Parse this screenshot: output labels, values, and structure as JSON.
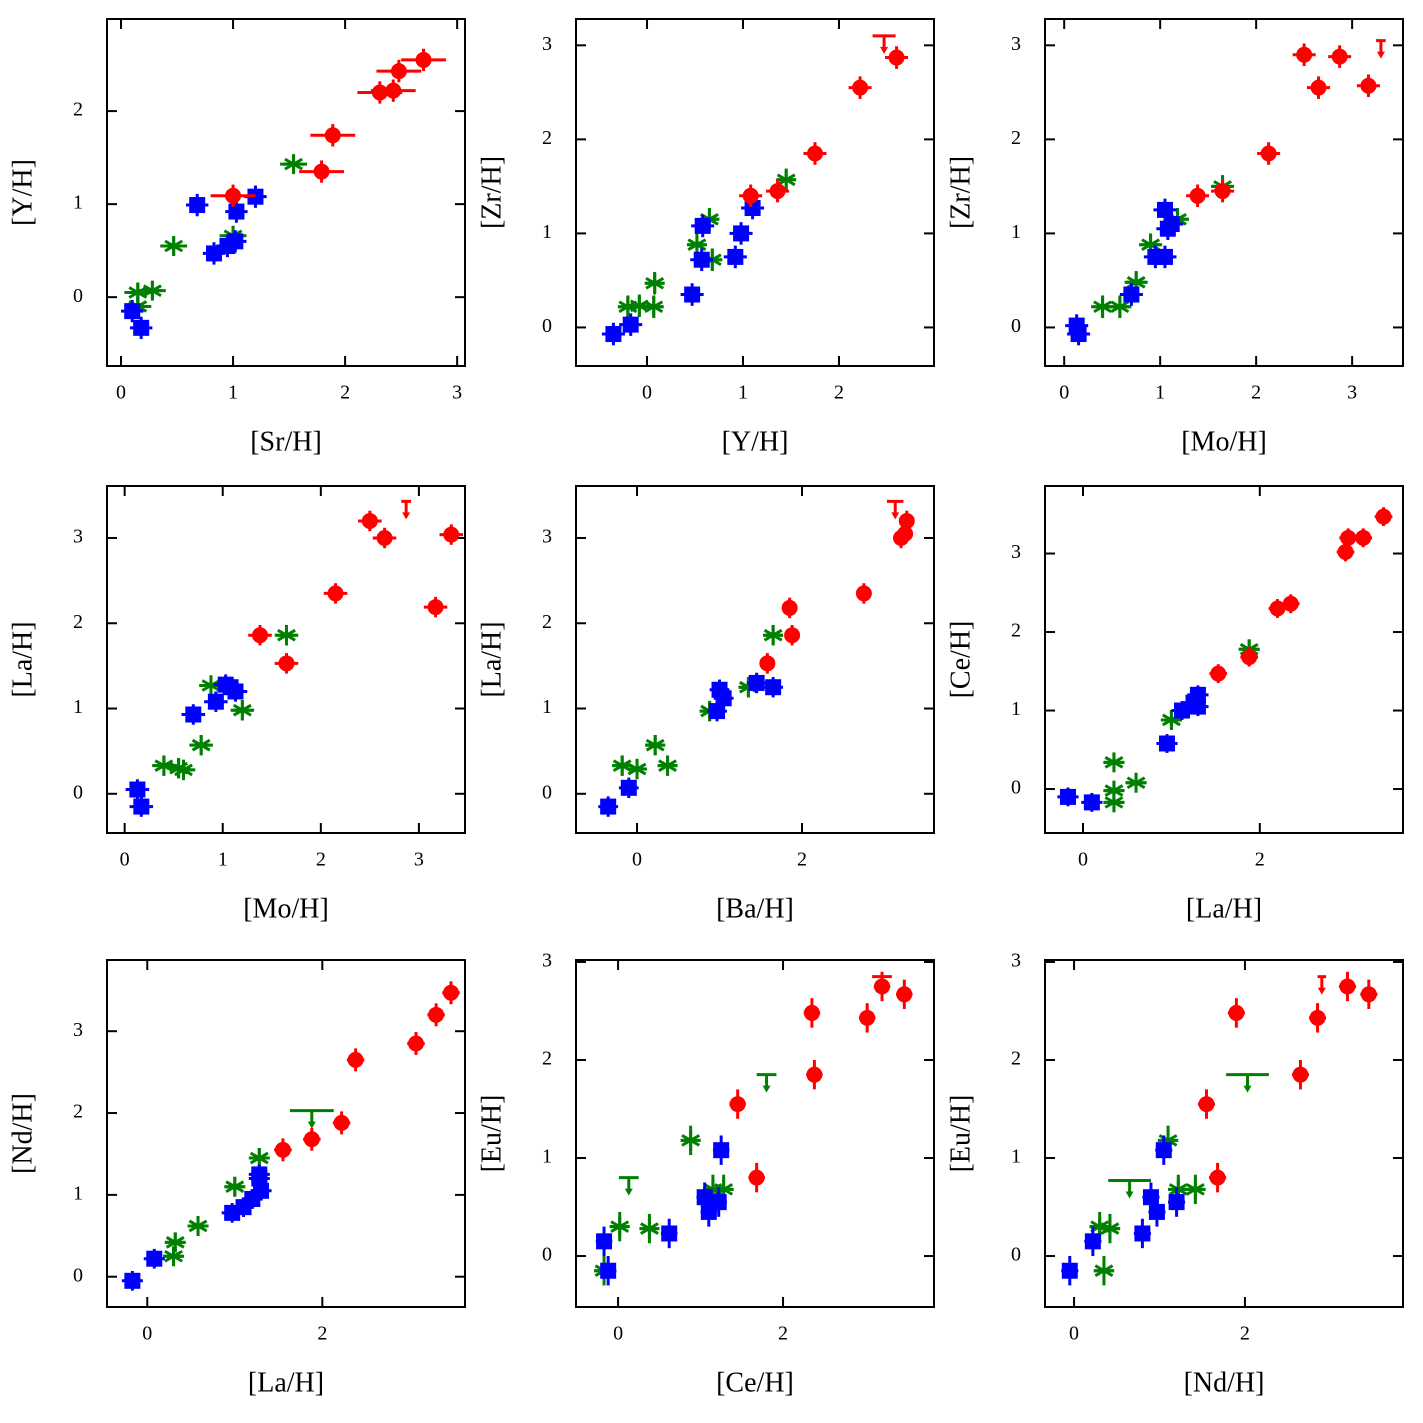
{
  "chart_data": [
    {
      "type": "scatter",
      "xlabel": "[Sr/H]",
      "ylabel": "[Y/H]",
      "xlim": [
        -0.125,
        3.07
      ],
      "ylim": [
        -0.74,
        2.99
      ],
      "xticks": [
        0,
        1,
        2,
        3
      ],
      "yticks": [
        0,
        1,
        2
      ],
      "series": [
        {
          "color": "#008000",
          "marker": "asterisk",
          "xerr": 0.12,
          "yerr": 0.1,
          "x": [
            0.15,
            0.28,
            0.47,
            1.0,
            1.54,
            0.15
          ],
          "y": [
            0.05,
            0.07,
            0.55,
            0.66,
            1.43,
            -0.1
          ]
        },
        {
          "color": "#0000ff",
          "marker": "square",
          "xerr": 0.1,
          "yerr": 0.12,
          "x": [
            0.1,
            0.18,
            0.68,
            0.83,
            0.95,
            1.02,
            1.03,
            1.2
          ],
          "y": [
            -0.15,
            -0.33,
            0.99,
            0.47,
            0.55,
            0.6,
            0.92,
            1.08
          ]
        },
        {
          "color": "#ff0000",
          "marker": "circle",
          "xerr": 0.2,
          "yerr": 0.12,
          "x": [
            1.0,
            1.79,
            1.89,
            2.31,
            2.43,
            2.48,
            2.7
          ],
          "y": [
            1.09,
            1.35,
            1.74,
            2.2,
            2.22,
            2.43,
            2.55
          ]
        }
      ]
    },
    {
      "type": "scatter",
      "xlabel": "[Y/H]",
      "ylabel": "[Zr/H]",
      "xlim": [
        -0.74,
        2.99
      ],
      "ylim": [
        -0.41,
        3.28
      ],
      "xticks": [
        0,
        1,
        2
      ],
      "yticks": [
        0,
        1,
        2,
        3
      ],
      "series": [
        {
          "color": "#008000",
          "marker": "asterisk",
          "xerr": 0.1,
          "yerr": 0.12,
          "x": [
            -0.2,
            -0.08,
            0.07,
            0.08,
            0.52,
            0.65,
            0.68,
            1.45
          ],
          "y": [
            0.22,
            0.23,
            0.22,
            0.47,
            0.88,
            1.15,
            0.72,
            1.57
          ]
        },
        {
          "color": "#0000ff",
          "marker": "square",
          "xerr": 0.12,
          "yerr": 0.12,
          "x": [
            -0.35,
            -0.17,
            0.47,
            0.57,
            0.58,
            0.92,
            0.98,
            1.1
          ],
          "y": [
            -0.07,
            0.03,
            0.35,
            0.72,
            1.08,
            0.75,
            1.0,
            1.27
          ]
        },
        {
          "color": "#ff0000",
          "marker": "circle",
          "xerr": 0.12,
          "yerr": 0.12,
          "x": [
            1.08,
            1.36,
            1.75,
            2.22,
            2.6
          ],
          "y": [
            1.4,
            1.45,
            1.85,
            2.55,
            2.87
          ]
        },
        {
          "color": "#ff0000",
          "marker": "arrow",
          "xerr": 0.12,
          "x": [
            2.47
          ],
          "y": [
            3.1
          ]
        }
      ]
    },
    {
      "type": "scatter",
      "xlabel": "[Mo/H]",
      "ylabel": "[Zr/H]",
      "xlim": [
        -0.2,
        3.53
      ],
      "ylim": [
        -0.41,
        3.28
      ],
      "xticks": [
        0,
        1,
        2,
        3
      ],
      "yticks": [
        0,
        1,
        2,
        3
      ],
      "series": [
        {
          "color": "#008000",
          "marker": "asterisk",
          "xerr": 0.12,
          "yerr": 0.12,
          "x": [
            0.4,
            0.58,
            0.75,
            0.9,
            1.18,
            1.65
          ],
          "y": [
            0.22,
            0.22,
            0.48,
            0.88,
            1.15,
            1.5
          ]
        },
        {
          "color": "#0000ff",
          "marker": "square",
          "xerr": 0.12,
          "yerr": 0.12,
          "x": [
            0.13,
            0.15,
            0.7,
            0.95,
            1.05,
            1.05,
            1.08,
            1.12
          ],
          "y": [
            0.02,
            -0.07,
            0.35,
            0.75,
            0.75,
            1.25,
            1.05,
            1.1
          ]
        },
        {
          "color": "#ff0000",
          "marker": "circle",
          "xerr": 0.12,
          "yerr": 0.12,
          "x": [
            1.39,
            1.65,
            2.13,
            2.5,
            2.65,
            2.87,
            3.17
          ],
          "y": [
            1.4,
            1.45,
            1.85,
            2.9,
            2.55,
            2.88,
            2.57
          ]
        },
        {
          "color": "#ff0000",
          "marker": "arrow",
          "xerr": 0.05,
          "x": [
            3.3
          ],
          "y": [
            3.05
          ]
        }
      ]
    },
    {
      "type": "scatter",
      "xlabel": "[Mo/H]",
      "ylabel": "[La/H]",
      "xlim": [
        -0.18,
        3.47
      ],
      "ylim": [
        -0.46,
        3.61
      ],
      "xticks": [
        0,
        1,
        2,
        3
      ],
      "yticks": [
        0,
        1,
        2,
        3
      ],
      "series": [
        {
          "color": "#008000",
          "marker": "asterisk",
          "xerr": 0.12,
          "yerr": 0.12,
          "x": [
            0.4,
            0.55,
            0.6,
            0.78,
            0.88,
            1.2,
            1.65
          ],
          "y": [
            0.33,
            0.3,
            0.28,
            0.57,
            1.27,
            0.98,
            1.86
          ]
        },
        {
          "color": "#0000ff",
          "marker": "square",
          "xerr": 0.12,
          "yerr": 0.12,
          "x": [
            0.13,
            0.17,
            0.7,
            0.93,
            1.03,
            1.08,
            1.13
          ],
          "y": [
            0.05,
            -0.15,
            0.93,
            1.08,
            1.28,
            1.25,
            1.2
          ]
        },
        {
          "color": "#ff0000",
          "marker": "circle",
          "xerr": 0.12,
          "yerr": 0.12,
          "x": [
            1.38,
            1.65,
            2.15,
            2.5,
            2.65,
            3.17,
            3.33
          ],
          "y": [
            1.86,
            1.53,
            2.35,
            3.2,
            3.0,
            2.19,
            3.04
          ]
        },
        {
          "color": "#ff0000",
          "marker": "arrow",
          "xerr": 0.05,
          "x": [
            2.87
          ],
          "y": [
            3.43
          ]
        }
      ]
    },
    {
      "type": "scatter",
      "xlabel": "[Ba/H]",
      "ylabel": "[La/H]",
      "xlim": [
        -0.74,
        3.6
      ],
      "ylim": [
        -0.46,
        3.61
      ],
      "xticks": [
        0,
        2
      ],
      "yticks": [
        0,
        1,
        2,
        3
      ],
      "series": [
        {
          "color": "#008000",
          "marker": "asterisk",
          "xerr": 0.12,
          "yerr": 0.12,
          "x": [
            -0.18,
            0.0,
            0.22,
            0.37,
            0.88,
            1.35,
            1.65
          ],
          "y": [
            0.33,
            0.29,
            0.57,
            0.33,
            0.97,
            1.25,
            1.86
          ]
        },
        {
          "color": "#0000ff",
          "marker": "square",
          "xerr": 0.12,
          "yerr": 0.12,
          "x": [
            -0.35,
            -0.1,
            0.97,
            1.0,
            1.05,
            1.45,
            1.65
          ],
          "y": [
            -0.15,
            0.07,
            0.97,
            1.22,
            1.12,
            1.3,
            1.25
          ]
        },
        {
          "color": "#ff0000",
          "marker": "circle",
          "xerr": 0.08,
          "yerr": 0.12,
          "x": [
            1.58,
            1.85,
            1.88,
            2.75,
            3.2,
            3.25,
            3.27
          ],
          "y": [
            1.53,
            2.18,
            1.86,
            2.35,
            3.0,
            3.05,
            3.2
          ]
        },
        {
          "color": "#ff0000",
          "marker": "arrow",
          "xerr": 0.1,
          "x": [
            3.13
          ],
          "y": [
            3.43
          ]
        }
      ]
    },
    {
      "type": "scatter",
      "xlabel": "[La/H]",
      "ylabel": "[Ce/H]",
      "xlim": [
        -0.43,
        3.62
      ],
      "ylim": [
        -0.56,
        3.86
      ],
      "xticks": [
        0,
        2
      ],
      "yticks": [
        0,
        1,
        2,
        3
      ],
      "series": [
        {
          "color": "#008000",
          "marker": "asterisk",
          "xerr": 0.12,
          "yerr": 0.12,
          "x": [
            0.35,
            0.35,
            0.35,
            0.6,
            1.0,
            1.88
          ],
          "y": [
            0.34,
            -0.02,
            -0.17,
            0.08,
            0.88,
            1.78
          ]
        },
        {
          "color": "#0000ff",
          "marker": "square",
          "xerr": 0.12,
          "yerr": 0.12,
          "x": [
            -0.17,
            0.1,
            0.95,
            1.12,
            1.25,
            1.3,
            1.3
          ],
          "y": [
            -0.1,
            -0.17,
            0.58,
            1.0,
            1.1,
            1.05,
            1.2
          ]
        },
        {
          "color": "#ff0000",
          "marker": "circle",
          "xerr": 0.1,
          "yerr": 0.12,
          "x": [
            1.53,
            1.88,
            2.2,
            2.35,
            2.97,
            3.0,
            3.17,
            3.4
          ],
          "y": [
            1.47,
            1.68,
            2.3,
            2.36,
            3.02,
            3.2,
            3.2,
            3.47
          ]
        }
      ]
    },
    {
      "type": "scatter",
      "xlabel": "[La/H]",
      "ylabel": "[Nd/H]",
      "xlim": [
        -0.46,
        3.63
      ],
      "ylim": [
        -0.37,
        3.87
      ],
      "xticks": [
        0,
        2
      ],
      "yticks": [
        0,
        1,
        2,
        3
      ],
      "series": [
        {
          "color": "#008000",
          "marker": "asterisk",
          "xerr": 0.12,
          "yerr": 0.12,
          "x": [
            0.3,
            0.32,
            0.58,
            1.0,
            1.28
          ],
          "y": [
            0.25,
            0.42,
            0.62,
            1.1,
            1.45
          ]
        },
        {
          "color": "#008000",
          "marker": "arrow",
          "xerr": 0.25,
          "x": [
            1.88
          ],
          "y": [
            2.03
          ]
        },
        {
          "color": "#0000ff",
          "marker": "square",
          "xerr": 0.12,
          "yerr": 0.12,
          "x": [
            -0.17,
            0.08,
            0.97,
            1.1,
            1.2,
            1.3,
            1.28,
            1.28
          ],
          "y": [
            -0.05,
            0.22,
            0.78,
            0.85,
            0.95,
            1.05,
            1.2,
            1.25
          ]
        },
        {
          "color": "#ff0000",
          "marker": "circle",
          "xerr": 0.1,
          "yerr": 0.14,
          "x": [
            1.55,
            1.88,
            2.22,
            2.38,
            3.07,
            3.3,
            3.47
          ],
          "y": [
            1.55,
            1.68,
            1.88,
            2.65,
            2.85,
            3.2,
            3.47
          ]
        }
      ]
    },
    {
      "type": "scatter",
      "xlabel": "[Ce/H]",
      "ylabel": "[Eu/H]",
      "xlim": [
        -0.51,
        3.83
      ],
      "ylim": [
        -0.52,
        3.02
      ],
      "xticks": [
        0,
        2
      ],
      "yticks": [
        0,
        1,
        2,
        3
      ],
      "series": [
        {
          "color": "#008000",
          "marker": "asterisk",
          "xerr": 0.12,
          "yerr": 0.15,
          "x": [
            -0.17,
            0.02,
            0.38,
            0.88,
            1.15,
            1.28
          ],
          "y": [
            -0.15,
            0.3,
            0.28,
            1.18,
            0.68,
            0.68
          ]
        },
        {
          "color": "#008000",
          "marker": "arrow",
          "xerr": 0.12,
          "x": [
            0.13,
            1.8
          ],
          "y": [
            0.8,
            1.85
          ]
        },
        {
          "color": "#0000ff",
          "marker": "square",
          "xerr": 0.1,
          "yerr": 0.15,
          "x": [
            -0.17,
            -0.12,
            0.62,
            1.05,
            1.1,
            1.22,
            1.25
          ],
          "y": [
            0.15,
            -0.15,
            0.23,
            0.6,
            0.45,
            0.55,
            1.08
          ]
        },
        {
          "color": "#ff0000",
          "marker": "circle",
          "xerr": 0.1,
          "yerr": 0.15,
          "x": [
            1.45,
            1.68,
            2.35,
            2.38,
            3.02,
            3.2,
            3.47
          ],
          "y": [
            1.55,
            0.8,
            2.48,
            1.85,
            2.43,
            2.75,
            2.67
          ]
        },
        {
          "color": "#ff0000",
          "marker": "arrow",
          "xerr": 0.12,
          "x": [
            3.2
          ],
          "y": [
            2.85
          ]
        }
      ]
    },
    {
      "type": "scatter",
      "xlabel": "[Nd/H]",
      "ylabel": "[Eu/H]",
      "xlim": [
        -0.34,
        3.85
      ],
      "ylim": [
        -0.52,
        3.02
      ],
      "xticks": [
        0,
        2
      ],
      "yticks": [
        0,
        1,
        2,
        3
      ],
      "series": [
        {
          "color": "#008000",
          "marker": "asterisk",
          "xerr": 0.12,
          "yerr": 0.15,
          "x": [
            0.3,
            0.35,
            0.42,
            1.1,
            1.22,
            1.42
          ],
          "y": [
            0.3,
            -0.15,
            0.28,
            1.18,
            0.68,
            0.68
          ]
        },
        {
          "color": "#008000",
          "marker": "arrow",
          "xerr": 0.25,
          "x": [
            0.65,
            2.03
          ],
          "y": [
            0.77,
            1.85
          ]
        },
        {
          "color": "#0000ff",
          "marker": "square",
          "xerr": 0.1,
          "yerr": 0.15,
          "x": [
            -0.05,
            0.22,
            0.8,
            0.9,
            0.97,
            1.05,
            1.2
          ],
          "y": [
            -0.15,
            0.15,
            0.23,
            0.6,
            0.45,
            1.08,
            0.55
          ]
        },
        {
          "color": "#ff0000",
          "marker": "circle",
          "xerr": 0.1,
          "yerr": 0.15,
          "x": [
            1.55,
            1.68,
            1.9,
            2.65,
            2.85,
            3.2,
            3.45
          ],
          "y": [
            1.55,
            0.8,
            2.48,
            1.85,
            2.43,
            2.75,
            2.67
          ]
        },
        {
          "color": "#ff0000",
          "marker": "arrow",
          "xerr": 0.05,
          "x": [
            2.9
          ],
          "y": [
            2.85
          ]
        }
      ]
    }
  ]
}
